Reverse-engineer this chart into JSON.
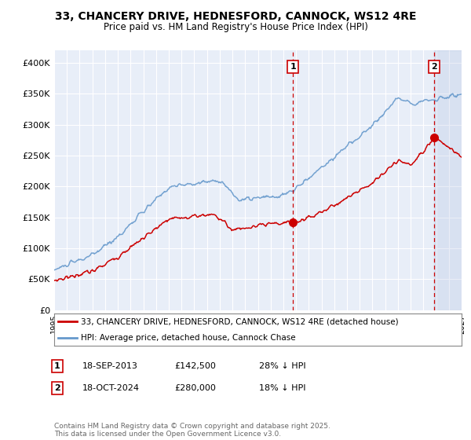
{
  "title": "33, CHANCERY DRIVE, HEDNESFORD, CANNOCK, WS12 4RE",
  "subtitle": "Price paid vs. HM Land Registry's House Price Index (HPI)",
  "legend_label_red": "33, CHANCERY DRIVE, HEDNESFORD, CANNOCK, WS12 4RE (detached house)",
  "legend_label_blue": "HPI: Average price, detached house, Cannock Chase",
  "annotation1_date": "18-SEP-2013",
  "annotation1_price": "£142,500",
  "annotation1_hpi": "28% ↓ HPI",
  "annotation2_date": "18-OCT-2024",
  "annotation2_price": "£280,000",
  "annotation2_hpi": "18% ↓ HPI",
  "footer": "Contains HM Land Registry data © Crown copyright and database right 2025.\nThis data is licensed under the Open Government Licence v3.0.",
  "background_color": "#ffffff",
  "plot_bg_color": "#e8eef8",
  "grid_color": "#ffffff",
  "red_color": "#cc0000",
  "blue_color": "#6699cc",
  "ylim": [
    0,
    420000
  ],
  "yticks": [
    0,
    50000,
    100000,
    150000,
    200000,
    250000,
    300000,
    350000,
    400000
  ]
}
